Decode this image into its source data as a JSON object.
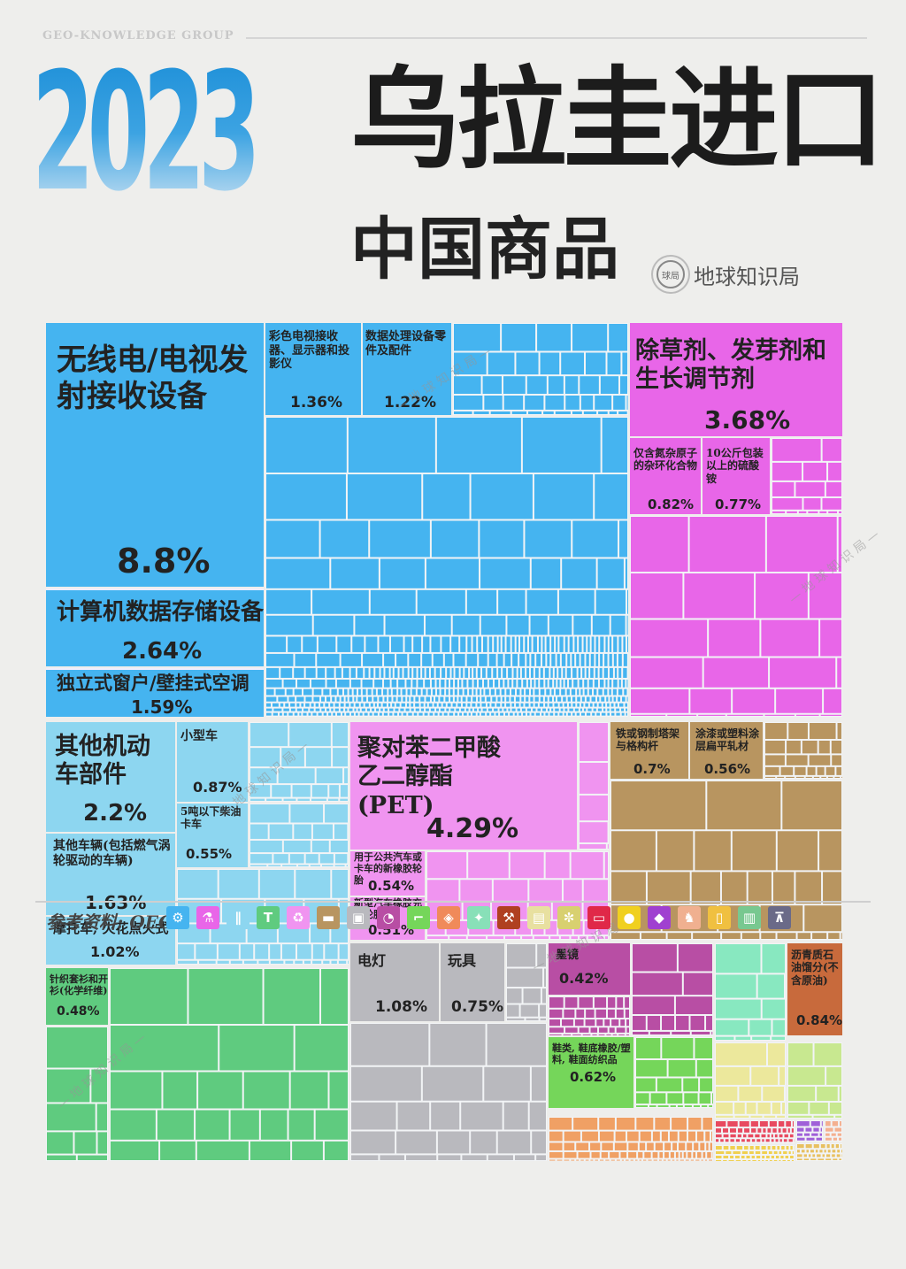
{
  "header": {
    "org": "GEO-KNOWLEDGE GROUP",
    "year": "2023",
    "title_line1": "乌拉圭进口",
    "title_line2": "中国商品",
    "brand_icon_text": "球局",
    "brand": "地球知识局"
  },
  "watermark": "— 地 球 知 识 局 —",
  "chart_data": {
    "type": "treemap",
    "unit": "%",
    "groups": [
      {
        "color": "#45b4f0",
        "items": [
          {
            "name": "无线电/电视发射接收设备",
            "value": 8.8
          },
          {
            "name": "计算机数据存储设备",
            "value": 2.64
          },
          {
            "name": "独立式窗户/壁挂式空调",
            "value": 1.59
          },
          {
            "name": "彩色电视接收器、显示器和投影仪",
            "value": 1.36
          },
          {
            "name": "数据处理设备零件及配件",
            "value": 1.22
          }
        ]
      },
      {
        "color": "#e866e8",
        "items": [
          {
            "name": "除草剂、发芽剂和生长调节剂",
            "value": 3.68
          },
          {
            "name": "仅含氮杂原子的杂环化合物",
            "value": 0.82
          },
          {
            "name": "10公斤包装以上的硫酸铵",
            "value": 0.77
          }
        ]
      },
      {
        "color": "#8dd6f0",
        "items": [
          {
            "name": "其他机动车部件",
            "value": 2.2
          },
          {
            "name": "其他车辆(包括燃气涡轮驱动的车辆)",
            "value": 1.63
          },
          {
            "name": "摩托车, 火花点火式",
            "value": 1.02
          },
          {
            "name": "小型车",
            "value": 0.87
          },
          {
            "name": "5吨以下柴油卡车",
            "value": 0.55
          }
        ]
      },
      {
        "color": "#f094f0",
        "items": [
          {
            "name": "聚对苯二甲酸乙二醇酯(PET)",
            "value": 4.29
          },
          {
            "name": "用于公共汽车或卡车的新橡胶轮胎",
            "value": 0.54
          },
          {
            "name": "新型汽车橡胶充气轮胎",
            "value": 0.51
          }
        ]
      },
      {
        "color": "#b89560",
        "items": [
          {
            "name": "铁或钢制塔架与格构杆",
            "value": 0.7
          },
          {
            "name": "涂漆或塑料涂层扁平轧材",
            "value": 0.56
          }
        ]
      },
      {
        "color": "#5fcb7f",
        "items": [
          {
            "name": "针织套衫和开衫(化学纤维)",
            "value": 0.48
          }
        ]
      },
      {
        "color": "#b9b9be",
        "items": [
          {
            "name": "电灯",
            "value": 1.08
          },
          {
            "name": "玩具",
            "value": 0.75
          }
        ]
      },
      {
        "color": "#b84ea4",
        "items": [
          {
            "name": "墨镜",
            "value": 0.42
          }
        ]
      },
      {
        "color": "#75d65a",
        "items": [
          {
            "name": "鞋类, 鞋底橡胶/塑料, 鞋面纺织品",
            "value": 0.62
          }
        ]
      },
      {
        "color": "#c86a3c",
        "items": [
          {
            "name": "沥青质石油馏分(不含原油)",
            "value": 0.84
          }
        ]
      }
    ]
  },
  "legend": {
    "source_label": "参考资料: OEC",
    "icons": [
      {
        "name": "gear-icon",
        "glyph": "⚙",
        "color": "#45b4f0"
      },
      {
        "name": "flask-icon",
        "glyph": "⚗",
        "color": "#e866e8"
      },
      {
        "name": "road-icon",
        "glyph": "∥",
        "color": "#8dd6f0"
      },
      {
        "name": "shirt-icon",
        "glyph": "T",
        "color": "#5fcb7f"
      },
      {
        "name": "recycle-icon",
        "glyph": "♻",
        "color": "#f094f0"
      },
      {
        "name": "anvil-icon",
        "glyph": "▬",
        "color": "#b89560"
      },
      {
        "name": "box-icon",
        "glyph": "▣",
        "color": "#b9b9be"
      },
      {
        "name": "gauge-icon",
        "glyph": "◔",
        "color": "#b84ea4"
      },
      {
        "name": "shoe-icon",
        "glyph": "⌐",
        "color": "#75d65a"
      },
      {
        "name": "stone-icon",
        "glyph": "◈",
        "color": "#f08a5a"
      },
      {
        "name": "hide-icon",
        "glyph": "✦",
        "color": "#88e0b8"
      },
      {
        "name": "hammer-icon",
        "glyph": "⚒",
        "color": "#b04020"
      },
      {
        "name": "paper-icon",
        "glyph": "▤",
        "color": "#e8e0a0"
      },
      {
        "name": "wheat-icon",
        "glyph": "✼",
        "color": "#d8d070"
      },
      {
        "name": "bill-icon",
        "glyph": "▭",
        "color": "#e02848"
      },
      {
        "name": "fruit-icon",
        "glyph": "●",
        "color": "#f0d020"
      },
      {
        "name": "gem-icon",
        "glyph": "◆",
        "color": "#a040d0"
      },
      {
        "name": "animal-icon",
        "glyph": "♞",
        "color": "#f0b090"
      },
      {
        "name": "bottle-icon",
        "glyph": "▯",
        "color": "#f0c040"
      },
      {
        "name": "film-icon",
        "glyph": "▥",
        "color": "#78c890"
      },
      {
        "name": "easel-icon",
        "glyph": "⊼",
        "color": "#6a6a88"
      }
    ]
  }
}
